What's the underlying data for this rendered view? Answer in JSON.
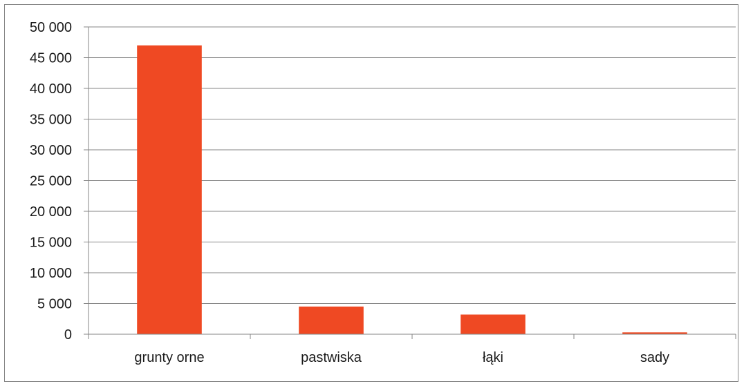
{
  "chart_data": {
    "type": "bar",
    "title": "",
    "xlabel": "",
    "ylabel": "",
    "categories": [
      "grunty orne",
      "pastwiska",
      "łąki",
      "sady"
    ],
    "values": [
      47000,
      4500,
      3200,
      300
    ],
    "ylim": [
      0,
      50000
    ],
    "yticks": [
      0,
      5000,
      10000,
      15000,
      20000,
      25000,
      30000,
      35000,
      40000,
      45000,
      50000
    ],
    "ytick_labels": [
      "0",
      "5 000",
      "10 000",
      "15 000",
      "20 000",
      "25 000",
      "30 000",
      "35 000",
      "40 000",
      "45 000",
      "50 000"
    ],
    "grid": true,
    "legend": "none",
    "bar_color": "#ef4923",
    "grid_color": "#868686"
  }
}
